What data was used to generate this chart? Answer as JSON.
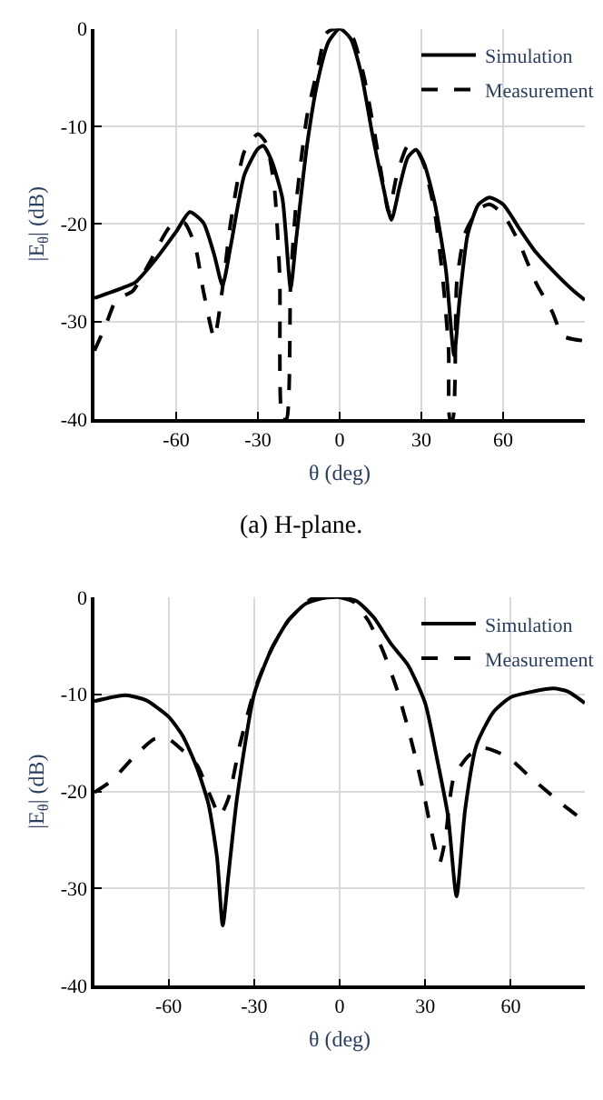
{
  "chart_data": [
    {
      "type": "line",
      "xlabel": "θ (deg)",
      "ylabel": "|E$_{θ}$| (dB)",
      "xlim": [
        -90,
        90
      ],
      "ylim": [
        -40,
        0
      ],
      "xticks": [
        -60,
        -30,
        0,
        30,
        60
      ],
      "yticks": [
        -40,
        -30,
        -20,
        -10,
        0
      ],
      "grid": true,
      "legend": "top right",
      "annotations": [
        "(a) H-plane."
      ],
      "series": [
        {
          "name": "Simulation",
          "color": "#000000",
          "line_style": "solid",
          "x": [
            -90,
            -80,
            -75,
            -68,
            -60,
            -55,
            -50,
            -46,
            -43,
            -40,
            -35,
            -30,
            -28,
            -25,
            -21,
            -18,
            -16,
            -12,
            -8,
            -4,
            0,
            4,
            8,
            12,
            16,
            19,
            22,
            25,
            28,
            31,
            35,
            39,
            42,
            44,
            47,
            51,
            55,
            60,
            66,
            72,
            80,
            86,
            90
          ],
          "values": [
            -27.6,
            -26.6,
            -26,
            -23.8,
            -20.8,
            -18.8,
            -19.9,
            -23.2,
            -26.3,
            -22.3,
            -15,
            -12.3,
            -12,
            -13.5,
            -17.4,
            -26.6,
            -21.7,
            -12,
            -5.3,
            -1.3,
            0,
            -1,
            -4.7,
            -10.8,
            -16.2,
            -19.6,
            -16.2,
            -13.2,
            -12.4,
            -13.8,
            -18,
            -24.7,
            -33.5,
            -27.8,
            -21.1,
            -18,
            -17.3,
            -18,
            -20.5,
            -22.9,
            -25.3,
            -26.9,
            -27.8
          ]
        },
        {
          "name": "Measurement",
          "color": "#000000",
          "line_style": "dashed",
          "x": [
            -90,
            -86,
            -82,
            -76,
            -70,
            -62,
            -57,
            -53,
            -50,
            -46,
            -43,
            -40,
            -35,
            -30,
            -27,
            -24,
            -22,
            -21,
            -19.5,
            -18,
            -16,
            -12,
            -8,
            -5,
            -2,
            2,
            5,
            9,
            13,
            16,
            18,
            21,
            25,
            28,
            31,
            35,
            38,
            40,
            40.5,
            41.5,
            43,
            46,
            51,
            55,
            60,
            66,
            72,
            78,
            82,
            90
          ],
          "values": [
            -33,
            -30.5,
            -27.8,
            -26.9,
            -24.1,
            -20.2,
            -19.9,
            -22.3,
            -26.9,
            -31.7,
            -26.6,
            -19.9,
            -12.6,
            -10.8,
            -11.7,
            -16.2,
            -25.3,
            -40,
            -40,
            -26,
            -18,
            -9,
            -4,
            -0.5,
            0,
            0,
            -1,
            -5,
            -11,
            -16,
            -18.8,
            -15,
            -12,
            -12.3,
            -14,
            -19,
            -26,
            -33,
            -40,
            -40,
            -26,
            -21,
            -18.5,
            -18,
            -19,
            -22,
            -26,
            -29,
            -31.5,
            -32
          ]
        }
      ]
    },
    {
      "type": "line",
      "xlabel": "θ (deg)",
      "ylabel": "|E$_{θ}$| (dB)",
      "xlim": [
        -86,
        86
      ],
      "ylim": [
        -40,
        0
      ],
      "xticks": [
        -60,
        -30,
        0,
        30,
        60
      ],
      "yticks": [
        -40,
        -30,
        -20,
        -10,
        0
      ],
      "grid": true,
      "legend": "top right",
      "series": [
        {
          "name": "Simulation",
          "color": "#000000",
          "line_style": "solid",
          "x": [
            -86,
            -80,
            -75,
            -68,
            -60,
            -55,
            -50,
            -46,
            -43,
            -41,
            -39,
            -36,
            -30,
            -24,
            -18,
            -12,
            -6,
            0,
            6,
            12,
            18,
            24,
            30,
            34,
            38,
            41,
            44,
            48,
            54,
            60,
            68,
            75,
            80,
            86
          ],
          "values": [
            -10.7,
            -10.3,
            -10.1,
            -10.6,
            -12.3,
            -14.3,
            -17.6,
            -21.3,
            -26.8,
            -33.8,
            -28.6,
            -20.7,
            -10,
            -5.4,
            -2.4,
            -0.7,
            -0.1,
            0,
            -0.4,
            -2.1,
            -4.8,
            -7,
            -10.9,
            -16.4,
            -22.5,
            -30.8,
            -21.9,
            -15.2,
            -11.8,
            -10.3,
            -9.7,
            -9.4,
            -9.7,
            -10.9
          ]
        },
        {
          "name": "Measurement",
          "color": "#000000",
          "line_style": "dashed",
          "x": [
            -86,
            -80,
            -72,
            -65,
            -60,
            -55,
            -50,
            -45,
            -42,
            -39,
            -35,
            -30,
            -24,
            -18,
            -10,
            -5,
            0,
            5,
            10,
            15,
            20,
            25,
            29,
            32,
            35,
            37,
            40,
            45,
            50,
            55,
            60,
            66,
            72,
            78,
            86
          ],
          "values": [
            -20.1,
            -18.9,
            -16.4,
            -14.6,
            -14.6,
            -15.8,
            -17.3,
            -20.7,
            -22.5,
            -20.7,
            -15.2,
            -9.7,
            -5.4,
            -2.4,
            -0.2,
            0,
            0,
            -0.5,
            -2.4,
            -5.4,
            -9.4,
            -14.6,
            -19.5,
            -23.8,
            -27.4,
            -25,
            -18.6,
            -16.4,
            -15.5,
            -15.9,
            -16.7,
            -18.3,
            -19.8,
            -21.3,
            -23.1
          ]
        }
      ]
    }
  ]
}
